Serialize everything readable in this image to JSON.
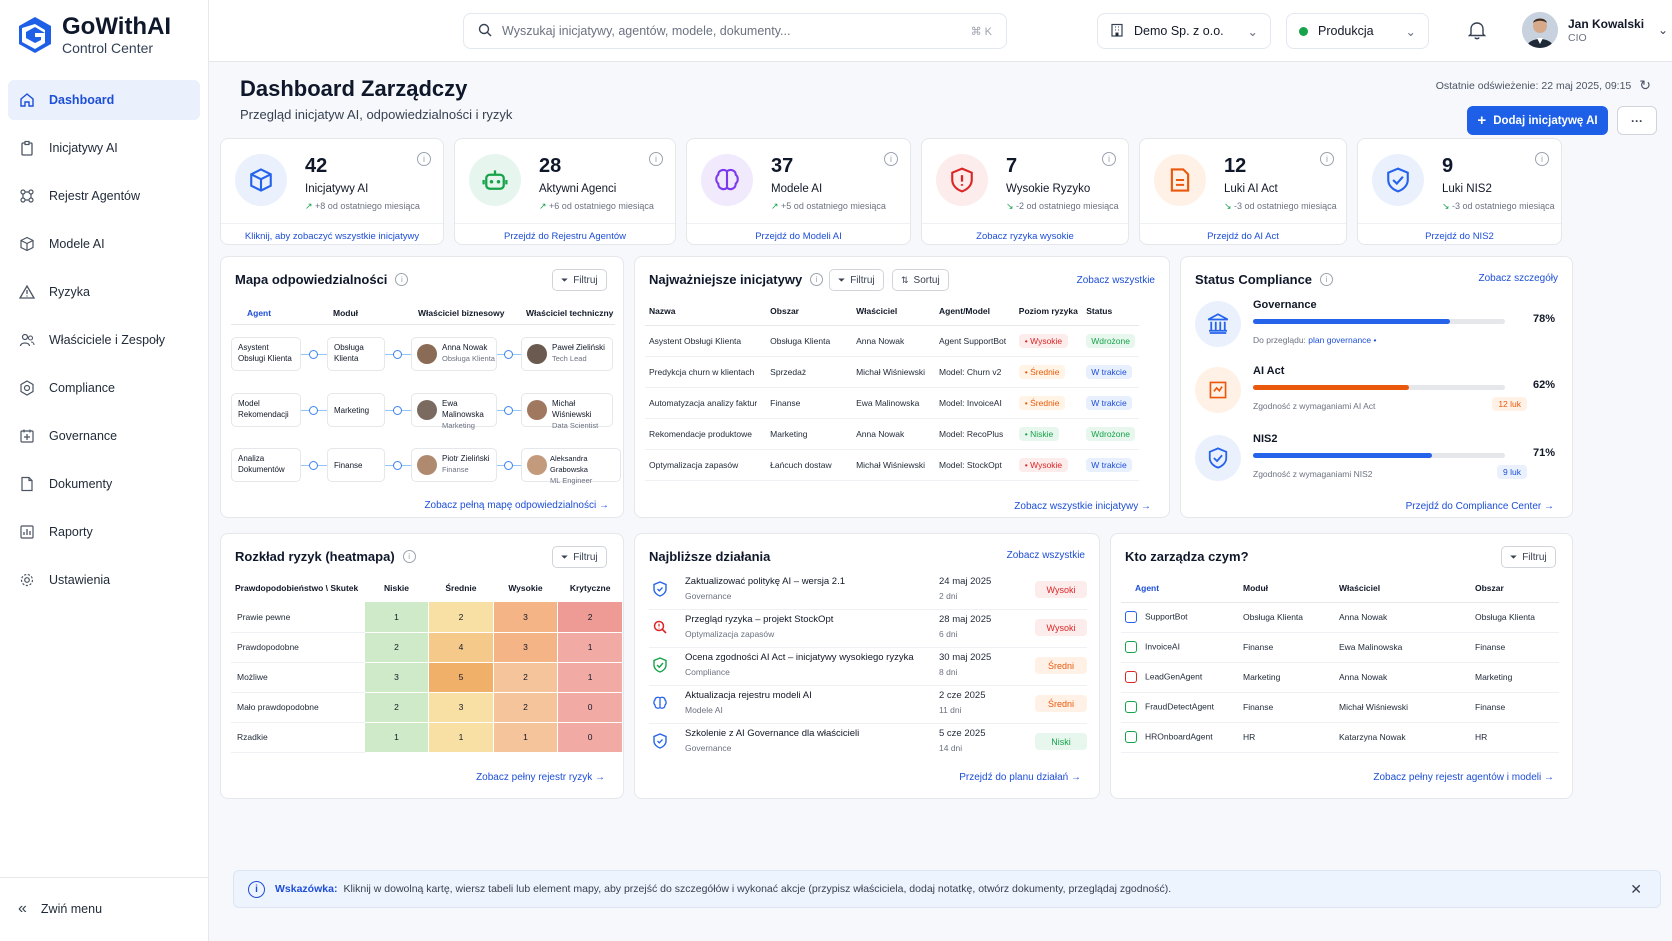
{
  "app": {
    "title": "GoWithAI",
    "subtitle": "Control Center"
  },
  "sidebar": {
    "items": [
      {
        "label": "Dashboard",
        "icon": "home-icon"
      },
      {
        "label": "Inicjatywy AI",
        "icon": "clipboard-icon"
      },
      {
        "label": "Rejestr Agentów",
        "icon": "network-icon"
      },
      {
        "label": "Modele AI",
        "icon": "cube-icon"
      },
      {
        "label": "Ryzyka",
        "icon": "warning-icon"
      },
      {
        "label": "Właściciele i Zespoły",
        "icon": "users-icon"
      },
      {
        "label": "Compliance",
        "icon": "badge-icon"
      },
      {
        "label": "Governance",
        "icon": "governance-icon"
      },
      {
        "label": "Dokumenty",
        "icon": "document-icon"
      },
      {
        "label": "Raporty",
        "icon": "report-icon"
      },
      {
        "label": "Ustawienia",
        "icon": "gear-icon"
      }
    ],
    "collapse_label": "Zwiń menu"
  },
  "topbar": {
    "search_placeholder": "Wyszukaj inicjatywy, agentów, modele, dokumenty...",
    "search_shortcut": "⌘ K",
    "org": "Demo Sp. z o.o.",
    "env": "Produkcja",
    "user_name": "Jan Kowalski",
    "user_role": "CIO"
  },
  "page": {
    "title": "Dashboard Zarządczy",
    "subtitle": "Przegląd inicjatyw AI, odpowiedzialności i ryzyk",
    "refresh": "Ostatnie odświeżenie: 22 maj 2025, 09:15",
    "add_button": "Dodaj inicjatywę AI",
    "more": "···"
  },
  "kpis": [
    {
      "value": "42",
      "label": "Inicjatywy AI",
      "trend": "+8 od ostatniego miesiąca",
      "link": "Kliknij, aby zobaczyć wszystkie inicjatywy",
      "color": "#2563eb",
      "bg": "#eaf1fd",
      "icon": "cube-icon"
    },
    {
      "value": "28",
      "label": "Aktywni Agenci",
      "trend": "+6 od ostatniego miesiąca",
      "link": "Przejdź do Rejestru Agentów",
      "color": "#16a34a",
      "bg": "#e6f6ee",
      "icon": "robot-icon"
    },
    {
      "value": "37",
      "label": "Modele AI",
      "trend": "+5 od ostatniego miesiąca",
      "link": "Przejdź do Modeli AI",
      "color": "#7c3aed",
      "bg": "#f1eafd",
      "icon": "brain-icon"
    },
    {
      "value": "7",
      "label": "Wysokie Ryzyko",
      "trend": "-2 od ostatniego miesiąca",
      "link": "Zobacz ryzyka wysokie",
      "color": "#dc2626",
      "bg": "#fdecec",
      "icon": "shield-alert-icon"
    },
    {
      "value": "12",
      "label": "Luki AI Act",
      "trend": "-3 od ostatniego miesiąca",
      "link": "Przejdź do AI Act",
      "color": "#ea580c",
      "bg": "#fff1e5",
      "icon": "document-icon"
    },
    {
      "value": "9",
      "label": "Luki NIS2",
      "trend": "-3 od ostatniego miesiąca",
      "link": "Przejdź do NIS2",
      "color": "#2563eb",
      "bg": "#eaf1fd",
      "icon": "shield-check-icon"
    }
  ],
  "map": {
    "title": "Mapa odpowiedzialności",
    "filter": "Filtruj",
    "headers": [
      "Agent",
      "Moduł",
      "Właściciel biznesowy",
      "Właściciel techniczny"
    ],
    "rows": [
      {
        "agent": "Asystent Obsługi Klienta",
        "module": "Obsługa Klienta",
        "biz": "Anna Nowak",
        "biz_role": "Obsługa Klienta",
        "tech": "Paweł Zieliński",
        "tech_role": "Tech Lead"
      },
      {
        "agent": "Model Rekomendacji",
        "module": "Marketing",
        "biz": "Ewa Malinowska",
        "biz_role": "Marketing",
        "tech": "Michał Wiśniewski",
        "tech_role": "Data Scientist"
      },
      {
        "agent": "Analiza Dokumentów",
        "module": "Finanse",
        "biz": "Piotr Zieliński",
        "biz_role": "Finanse",
        "tech": "Aleksandra Grabowska",
        "tech_role": "ML Engineer"
      }
    ],
    "link": "Zobacz pełną mapę odpowiedzialności  →"
  },
  "initiatives": {
    "title": "Najważniejsze inicjatywy",
    "filter": "Filtruj",
    "sort": "Sortuj",
    "see_all": "Zobacz wszystkie",
    "headers": [
      "Nazwa",
      "Obszar",
      "Właściciel",
      "Agent/Model",
      "Poziom ryzyka",
      "Status"
    ],
    "rows": [
      {
        "name": "Asystent Obsługi Klienta",
        "area": "Obsługa Klienta",
        "owner": "Anna Nowak",
        "agent": "Agent SupportBot",
        "risk": "• Wysokie",
        "risk_class": "high",
        "status": "Wdrożone",
        "status_class": "ok"
      },
      {
        "name": "Predykcja churn w klientach",
        "area": "Sprzedaż",
        "owner": "Michał Wiśniewski",
        "agent": "Model: Churn v2",
        "risk": "• Średnie",
        "risk_class": "mid",
        "status": "W trakcie",
        "status_class": "prog"
      },
      {
        "name": "Automatyzacja analizy faktur",
        "area": "Finanse",
        "owner": "Ewa Malinowska",
        "agent": "Model: InvoiceAI",
        "risk": "• Średnie",
        "risk_class": "mid",
        "status": "W trakcie",
        "status_class": "prog"
      },
      {
        "name": "Rekomendacje produktowe",
        "area": "Marketing",
        "owner": "Anna Nowak",
        "agent": "Model: RecoPlus",
        "risk": "• Niskie",
        "risk_class": "low",
        "status": "Wdrożone",
        "status_class": "ok"
      },
      {
        "name": "Optymalizacja zapasów",
        "area": "Łańcuch dostaw",
        "owner": "Michał Wiśniewski",
        "agent": "Model: StockOpt",
        "risk": "• Wysokie",
        "risk_class": "high",
        "status": "W trakcie",
        "status_class": "prog"
      }
    ],
    "link": "Zobacz wszystkie inicjatywy  →"
  },
  "compliance": {
    "title": "Status Compliance",
    "details": "Zobacz szczegóły",
    "items": [
      {
        "name": "Governance",
        "pct": "78%",
        "value": 78,
        "note_prefix": "Do przeglądu: ",
        "note_link": "plan governance",
        "color": "#2563eb",
        "bg": "#eaf1fd",
        "icon": "governance-icon"
      },
      {
        "name": "AI Act",
        "pct": "62%",
        "value": 62,
        "note": "Zgodność z wymaganiami AI Act",
        "badge": "12 luk",
        "color": "#ea580c",
        "bg": "#fff1e5",
        "icon": "document-icon"
      },
      {
        "name": "NIS2",
        "pct": "71%",
        "value": 71,
        "note": "Zgodność z wymaganiami NIS2",
        "badge": "9 luk",
        "color": "#2563eb",
        "bg": "#eaf1fd",
        "icon": "shield-check-icon"
      }
    ],
    "link": "Przejdź do Compliance Center  →"
  },
  "heatmap": {
    "title": "Rozkład ryzyk (heatmapa)",
    "filter": "Filtruj",
    "corner": "Prawdopodobieństwo \\ Skutek",
    "cols": [
      "Niskie",
      "Średnie",
      "Wysokie",
      "Krytyczne"
    ],
    "rows": [
      {
        "label": "Prawie pewne",
        "values": [
          1,
          2,
          3,
          2
        ]
      },
      {
        "label": "Prawdopodobne",
        "values": [
          2,
          4,
          3,
          1
        ]
      },
      {
        "label": "Możliwe",
        "values": [
          3,
          5,
          2,
          1
        ]
      },
      {
        "label": "Mało prawdopodobne",
        "values": [
          2,
          3,
          2,
          0
        ]
      },
      {
        "label": "Rzadkie",
        "values": [
          1,
          1,
          1,
          0
        ]
      }
    ],
    "link": "Zobacz pełny rejestr ryzyk  →"
  },
  "actions": {
    "title": "Najbliższe działania",
    "see_all": "Zobacz wszystkie",
    "items": [
      {
        "title": "Zaktualizować politykę AI – wersja 2.1",
        "cat": "Governance",
        "date": "24 maj 2025",
        "days": "2 dni",
        "prio": "Wysoki",
        "prio_class": "high",
        "color": "#2563eb",
        "icon": "shield-icon"
      },
      {
        "title": "Przegląd ryzyka – projekt StockOpt",
        "cat": "Optymalizacja zapasów",
        "date": "28 maj 2025",
        "days": "6 dni",
        "prio": "Wysoki",
        "prio_class": "high",
        "color": "#dc2626",
        "icon": "search-risk-icon"
      },
      {
        "title": "Ocena zgodności AI Act – inicjatywy wysokiego ryzyka",
        "cat": "Compliance",
        "date": "30 maj 2025",
        "days": "8 dni",
        "prio": "Średni",
        "prio_class": "mid",
        "color": "#16a34a",
        "icon": "shield-check-icon"
      },
      {
        "title": "Aktualizacja rejestru modeli AI",
        "cat": "Modele AI",
        "date": "2 cze 2025",
        "days": "11 dni",
        "prio": "Średni",
        "prio_class": "mid",
        "color": "#2563eb",
        "icon": "brain-icon"
      },
      {
        "title": "Szkolenie z AI Governance dla właścicieli",
        "cat": "Governance",
        "date": "5 cze 2025",
        "days": "14 dni",
        "prio": "Niski",
        "prio_class": "low",
        "color": "#2563eb",
        "icon": "shield-icon"
      }
    ],
    "link": "Przejdź do planu działań  →"
  },
  "who": {
    "title": "Kto zarządza czym?",
    "filter": "Filtruj",
    "headers": [
      "Agent",
      "Moduł",
      "Właściciel",
      "Obszar"
    ],
    "rows": [
      {
        "agent": "SupportBot",
        "module": "Obsługa Klienta",
        "owner": "Anna Nowak",
        "area": "Obsługa Klienta",
        "color": "#2563eb"
      },
      {
        "agent": "InvoiceAI",
        "module": "Finanse",
        "owner": "Ewa Malinowska",
        "area": "Finanse",
        "color": "#16a34a"
      },
      {
        "agent": "LeadGenAgent",
        "module": "Marketing",
        "owner": "Anna Nowak",
        "area": "Marketing",
        "color": "#dc2626"
      },
      {
        "agent": "FraudDetectAgent",
        "module": "Finanse",
        "owner": "Michał Wiśniewski",
        "area": "Finanse",
        "color": "#16a34a"
      },
      {
        "agent": "HROnboardAgent",
        "module": "HR",
        "owner": "Katarzyna Nowak",
        "area": "HR",
        "color": "#16a34a"
      }
    ],
    "link": "Zobacz pełny rejestr agentów i modeli  →"
  },
  "tip": {
    "label": "Wskazówka:",
    "text": "Kliknij w dowolną kartę, wiersz tabeli lub element mapy, aby przejść do szczegółów i wykonać akcje (przypisz właściciela, dodaj notatkę, otwórz dokumenty, przeglądaj zgodność)."
  }
}
